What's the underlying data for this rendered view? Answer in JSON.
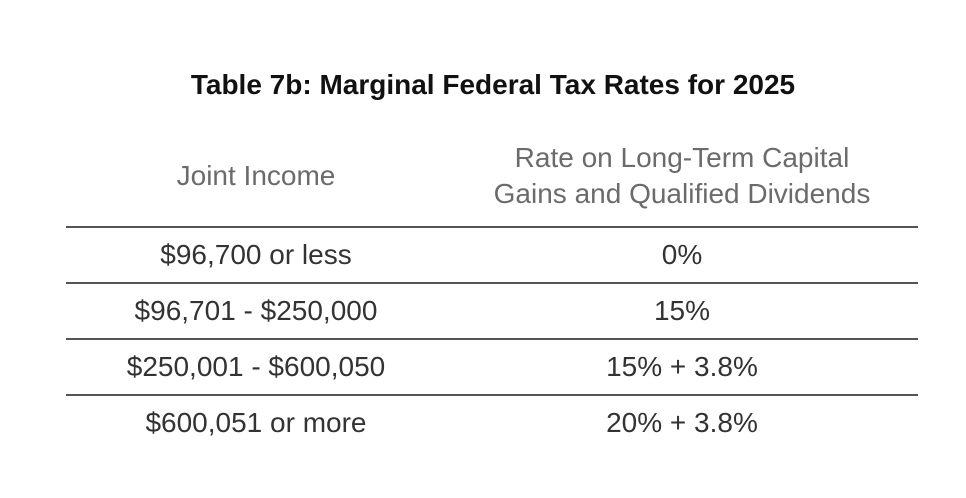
{
  "title": "Table 7b: Marginal Federal Tax Rates for 2025",
  "headers": {
    "col1": "Joint Income",
    "col2_line1": "Rate on Long-Term Capital",
    "col2_line2": "Gains and Qualified Dividends"
  },
  "rows": [
    {
      "income": "$96,700 or less",
      "rate": "0%"
    },
    {
      "income": "$96,701 - $250,000",
      "rate": "15%"
    },
    {
      "income": "$250,001 - $600,050",
      "rate": "15% + 3.8%"
    },
    {
      "income": "$600,051 or more",
      "rate": "20% + 3.8%"
    }
  ]
}
